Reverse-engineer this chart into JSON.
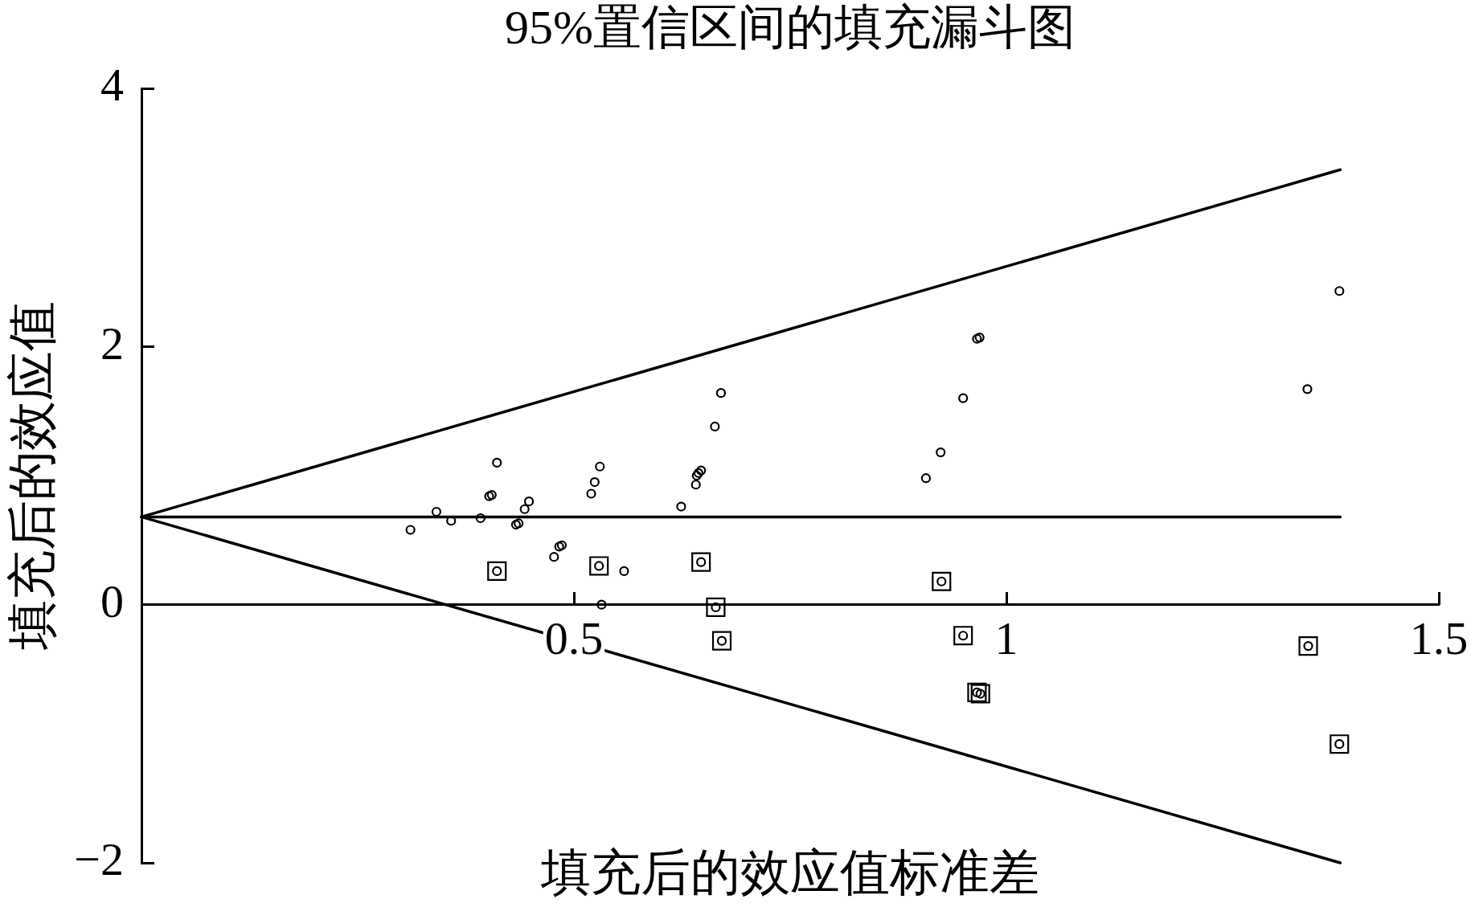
{
  "chart_data": {
    "type": "scatter",
    "title": "95%置信区间的填充漏斗图",
    "xlabel": "填充后的效应值标准差",
    "ylabel": "填充后的效应值",
    "xlim": [
      0,
      1.5
    ],
    "xticks": [
      0.5,
      1,
      1.5
    ],
    "ylim": [
      -2,
      4
    ],
    "yticks": [
      {
        "value": -2,
        "label": "−2"
      },
      0,
      2,
      4
    ],
    "series": [
      {
        "type": "scatter",
        "color": "#000000",
        "marker": "circle",
        "x": [
          0.311,
          0.341,
          0.358,
          0.392,
          0.402,
          0.405,
          0.411,
          0.433,
          0.436,
          0.443,
          0.448,
          0.477,
          0.483,
          0.486,
          0.52,
          0.524,
          0.53,
          0.532,
          0.558,
          0.624,
          0.641,
          0.642,
          0.644,
          0.647,
          0.663,
          0.67,
          0.907,
          0.924,
          0.95,
          0.966,
          0.969,
          1.348,
          1.385,
          0.411,
          0.529,
          0.647,
          0.664,
          0.671,
          0.925,
          0.95,
          0.966,
          0.97,
          1.349,
          1.385
        ],
        "values": [
          0.58,
          0.72,
          0.65,
          0.67,
          0.84,
          0.85,
          1.1,
          0.62,
          0.63,
          0.74,
          0.8,
          0.37,
          0.45,
          0.46,
          0.86,
          0.95,
          1.07,
          0.0,
          0.26,
          0.76,
          0.93,
          1.0,
          1.02,
          1.04,
          1.38,
          1.64,
          0.98,
          1.18,
          1.6,
          2.06,
          2.07,
          1.67,
          2.43,
          0.26,
          0.3,
          0.33,
          -0.02,
          -0.28,
          0.18,
          -0.24,
          -0.68,
          -0.69,
          -0.32,
          -1.08
        ]
      },
      {
        "type": "scatter",
        "color": "#000000",
        "marker": "square",
        "x": [
          0.411,
          0.529,
          0.647,
          0.664,
          0.671,
          0.925,
          0.95,
          0.966,
          0.97,
          1.349,
          1.385
        ],
        "values": [
          0.26,
          0.3,
          0.33,
          -0.02,
          -0.28,
          0.18,
          -0.24,
          -0.68,
          -0.69,
          -0.32,
          -1.08
        ]
      },
      {
        "type": "line",
        "color": "#000000",
        "line_style": "solid",
        "x": [
          0,
          1.386
        ],
        "values": [
          0.68,
          3.37
        ]
      },
      {
        "type": "line",
        "color": "#000000",
        "line_style": "solid",
        "x": [
          0,
          1.386
        ],
        "values": [
          0.68,
          0.68
        ]
      },
      {
        "type": "line",
        "color": "#000000",
        "line_style": "solid",
        "x": [
          0,
          1.386
        ],
        "values": [
          0.68,
          -2.0
        ]
      }
    ]
  }
}
